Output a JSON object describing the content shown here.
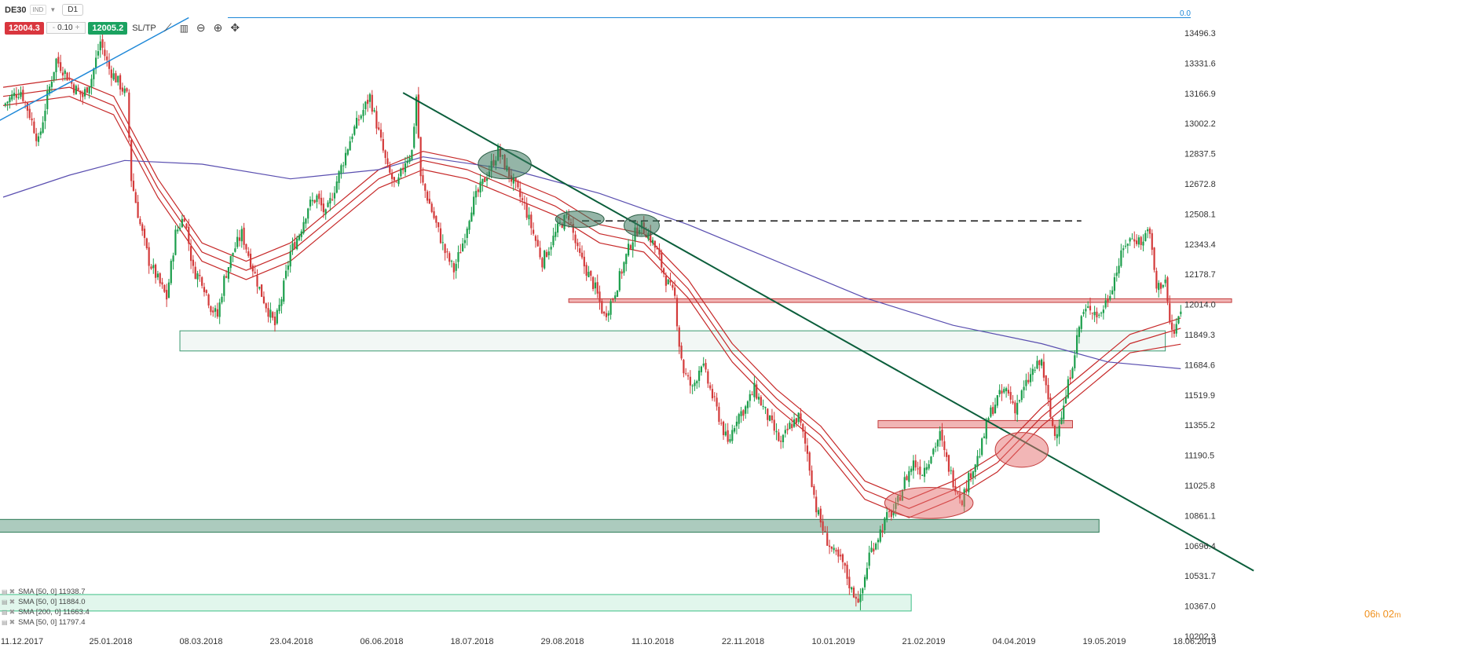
{
  "header": {
    "symbol": "DE30",
    "instrument_type": "IND",
    "timeframe": "D1",
    "sell_price": "12004.3",
    "lot_size": "0.10",
    "lot_minus": "-",
    "lot_plus": "+",
    "buy_price": "12005.2",
    "sltp_label": "SL/TP"
  },
  "icons": [
    "line-chart-icon",
    "candlestick-icon",
    "zoom-out-icon",
    "zoom-in-icon",
    "crosshair-icon"
  ],
  "top_right_value": "0.0",
  "timer": {
    "hours": "06",
    "h": "h",
    "minutes": "02",
    "m": "m"
  },
  "indicators": [
    {
      "label": "SMA [50, 0] 11938.7"
    },
    {
      "label": "SMA [50, 0] 11884.0"
    },
    {
      "label": "SMA [200, 0] 11663.4"
    },
    {
      "label": "SMA [50, 0] 11797.4"
    }
  ],
  "colors": {
    "bull": "#1b9e4b",
    "bear": "#d33a3a",
    "sma_red": "#c62828",
    "sma_purple": "#5a4fb0",
    "trendline": "#0b5e3b",
    "blue_trend": "#1e88d8",
    "accent_text": "#f0901c"
  },
  "chart_data": {
    "type": "candlestick",
    "title": "",
    "xlabel": "",
    "ylabel": "",
    "y_ticks": [
      13496.3,
      13331.6,
      13166.9,
      13002.2,
      12837.5,
      12672.8,
      12508.1,
      12343.4,
      12178.7,
      12014.0,
      11849.3,
      11684.6,
      11519.9,
      11355.2,
      11190.5,
      11025.8,
      10861.1,
      10696.4,
      10531.7,
      10367.0,
      10202.3
    ],
    "y_tick_labels": [
      "13496.3",
      "13331.6",
      "13166.9",
      "13002.2",
      "12837.5",
      "12672.8",
      "12508.1",
      "12343.4",
      "12178.7",
      "12014.0",
      "11849.3",
      "11684.6",
      "11519.9",
      "11355.2",
      "11190.5",
      "11025.8",
      "10861.1",
      "10696.4",
      "10531.7",
      "10367.0",
      "10202.3"
    ],
    "x_tick_labels": [
      "11.12.2017",
      "25.01.2018",
      "08.03.2018",
      "23.04.2018",
      "06.06.2018",
      "18.07.2018",
      "29.08.2018",
      "11.10.2018",
      "22.11.2018",
      "10.01.2019",
      "21.02.2019",
      "04.04.2019",
      "19.05.2019",
      "18.06.2019"
    ],
    "ylim": [
      10160,
      13560
    ],
    "grid": false,
    "close_path": [
      [
        0,
        13100
      ],
      [
        4,
        13150
      ],
      [
        8,
        13180
      ],
      [
        12,
        13050
      ],
      [
        16,
        12900
      ],
      [
        20,
        13150
      ],
      [
        24,
        13350
      ],
      [
        28,
        13280
      ],
      [
        32,
        13200
      ],
      [
        36,
        13150
      ],
      [
        40,
        13250
      ],
      [
        44,
        13450
      ],
      [
        48,
        13300
      ],
      [
        52,
        13230
      ],
      [
        56,
        13150
      ],
      [
        58,
        12700
      ],
      [
        62,
        12450
      ],
      [
        66,
        12250
      ],
      [
        70,
        12150
      ],
      [
        74,
        12050
      ],
      [
        78,
        12400
      ],
      [
        82,
        12500
      ],
      [
        86,
        12200
      ],
      [
        90,
        12150
      ],
      [
        94,
        12000
      ],
      [
        97,
        11950
      ],
      [
        100,
        12150
      ],
      [
        104,
        12300
      ],
      [
        108,
        12400
      ],
      [
        112,
        12250
      ],
      [
        116,
        12100
      ],
      [
        120,
        11980
      ],
      [
        123,
        11900
      ],
      [
        126,
        12050
      ],
      [
        130,
        12300
      ],
      [
        134,
        12400
      ],
      [
        138,
        12550
      ],
      [
        142,
        12600
      ],
      [
        146,
        12500
      ],
      [
        150,
        12650
      ],
      [
        154,
        12800
      ],
      [
        158,
        12950
      ],
      [
        162,
        13050
      ],
      [
        166,
        13150
      ],
      [
        170,
        12950
      ],
      [
        174,
        12750
      ],
      [
        178,
        12650
      ],
      [
        182,
        12800
      ],
      [
        185,
        12850
      ],
      [
        187,
        13150
      ],
      [
        189,
        12700
      ],
      [
        192,
        12600
      ],
      [
        196,
        12450
      ],
      [
        200,
        12300
      ],
      [
        204,
        12200
      ],
      [
        208,
        12350
      ],
      [
        212,
        12550
      ],
      [
        216,
        12650
      ],
      [
        220,
        12750
      ],
      [
        224,
        12850
      ],
      [
        228,
        12750
      ],
      [
        232,
        12650
      ],
      [
        236,
        12550
      ],
      [
        240,
        12400
      ],
      [
        244,
        12250
      ],
      [
        248,
        12350
      ],
      [
        252,
        12450
      ],
      [
        256,
        12500
      ],
      [
        260,
        12300
      ],
      [
        264,
        12200
      ],
      [
        268,
        12100
      ],
      [
        272,
        11950
      ],
      [
        276,
        12050
      ],
      [
        280,
        12200
      ],
      [
        284,
        12350
      ],
      [
        288,
        12450
      ],
      [
        292,
        12400
      ],
      [
        296,
        12300
      ],
      [
        300,
        12150
      ],
      [
        304,
        12050
      ],
      [
        306,
        11800
      ],
      [
        308,
        11650
      ],
      [
        312,
        11550
      ],
      [
        316,
        11700
      ],
      [
        320,
        11550
      ],
      [
        324,
        11400
      ],
      [
        328,
        11250
      ],
      [
        332,
        11400
      ],
      [
        336,
        11450
      ],
      [
        340,
        11550
      ],
      [
        344,
        11450
      ],
      [
        348,
        11350
      ],
      [
        352,
        11250
      ],
      [
        356,
        11350
      ],
      [
        360,
        11400
      ],
      [
        364,
        11200
      ],
      [
        368,
        10900
      ],
      [
        372,
        10750
      ],
      [
        376,
        10650
      ],
      [
        380,
        10600
      ],
      [
        384,
        10450
      ],
      [
        388,
        10400
      ],
      [
        392,
        10650
      ],
      [
        396,
        10750
      ],
      [
        400,
        10850
      ],
      [
        404,
        10900
      ],
      [
        408,
        11050
      ],
      [
        412,
        11150
      ],
      [
        416,
        11100
      ],
      [
        420,
        11200
      ],
      [
        424,
        11300
      ],
      [
        426,
        11200
      ],
      [
        430,
        11050
      ],
      [
        434,
        10950
      ],
      [
        438,
        11100
      ],
      [
        442,
        11200
      ],
      [
        446,
        11400
      ],
      [
        450,
        11500
      ],
      [
        454,
        11550
      ],
      [
        458,
        11450
      ],
      [
        462,
        11550
      ],
      [
        466,
        11650
      ],
      [
        470,
        11700
      ],
      [
        474,
        11400
      ],
      [
        476,
        11300
      ],
      [
        480,
        11450
      ],
      [
        484,
        11700
      ],
      [
        488,
        11950
      ],
      [
        492,
        12000
      ],
      [
        496,
        11950
      ],
      [
        500,
        12050
      ],
      [
        504,
        12200
      ],
      [
        508,
        12350
      ],
      [
        512,
        12380
      ],
      [
        516,
        12350
      ],
      [
        518,
        12450
      ],
      [
        520,
        12300
      ],
      [
        522,
        12100
      ],
      [
        526,
        12150
      ],
      [
        528,
        11900
      ],
      [
        530,
        11850
      ],
      [
        532,
        11950
      ],
      [
        533,
        11960
      ]
    ],
    "sma_50_a": [
      [
        0,
        13200
      ],
      [
        30,
        13250
      ],
      [
        50,
        13150
      ],
      [
        70,
        12700
      ],
      [
        90,
        12350
      ],
      [
        110,
        12250
      ],
      [
        130,
        12350
      ],
      [
        150,
        12550
      ],
      [
        170,
        12750
      ],
      [
        190,
        12850
      ],
      [
        210,
        12800
      ],
      [
        230,
        12700
      ],
      [
        250,
        12600
      ],
      [
        270,
        12450
      ],
      [
        290,
        12400
      ],
      [
        310,
        12150
      ],
      [
        330,
        11800
      ],
      [
        350,
        11550
      ],
      [
        370,
        11350
      ],
      [
        390,
        11050
      ],
      [
        410,
        10950
      ],
      [
        430,
        11050
      ],
      [
        450,
        11200
      ],
      [
        470,
        11450
      ],
      [
        490,
        11650
      ],
      [
        510,
        11850
      ],
      [
        533,
        11940
      ]
    ],
    "sma_50_b": [
      [
        0,
        13150
      ],
      [
        30,
        13200
      ],
      [
        50,
        13100
      ],
      [
        70,
        12650
      ],
      [
        90,
        12300
      ],
      [
        110,
        12200
      ],
      [
        130,
        12300
      ],
      [
        150,
        12500
      ],
      [
        170,
        12700
      ],
      [
        190,
        12800
      ],
      [
        210,
        12750
      ],
      [
        230,
        12650
      ],
      [
        250,
        12550
      ],
      [
        270,
        12400
      ],
      [
        290,
        12350
      ],
      [
        310,
        12100
      ],
      [
        330,
        11750
      ],
      [
        350,
        11500
      ],
      [
        370,
        11300
      ],
      [
        390,
        11000
      ],
      [
        410,
        10900
      ],
      [
        430,
        11000
      ],
      [
        450,
        11150
      ],
      [
        470,
        11400
      ],
      [
        490,
        11600
      ],
      [
        510,
        11800
      ],
      [
        533,
        11884
      ]
    ],
    "sma_50_c": [
      [
        0,
        13100
      ],
      [
        30,
        13150
      ],
      [
        50,
        13050
      ],
      [
        70,
        12600
      ],
      [
        90,
        12250
      ],
      [
        110,
        12150
      ],
      [
        130,
        12250
      ],
      [
        150,
        12450
      ],
      [
        170,
        12650
      ],
      [
        190,
        12750
      ],
      [
        210,
        12700
      ],
      [
        230,
        12600
      ],
      [
        250,
        12500
      ],
      [
        270,
        12350
      ],
      [
        290,
        12300
      ],
      [
        310,
        12050
      ],
      [
        330,
        11700
      ],
      [
        350,
        11450
      ],
      [
        370,
        11250
      ],
      [
        390,
        10950
      ],
      [
        410,
        10850
      ],
      [
        430,
        10950
      ],
      [
        450,
        11100
      ],
      [
        470,
        11350
      ],
      [
        490,
        11550
      ],
      [
        510,
        11750
      ],
      [
        533,
        11797
      ]
    ],
    "sma_200": [
      [
        0,
        12600
      ],
      [
        30,
        12720
      ],
      [
        55,
        12800
      ],
      [
        90,
        12780
      ],
      [
        130,
        12700
      ],
      [
        170,
        12750
      ],
      [
        190,
        12820
      ],
      [
        230,
        12750
      ],
      [
        270,
        12620
      ],
      [
        310,
        12450
      ],
      [
        350,
        12250
      ],
      [
        390,
        12050
      ],
      [
        430,
        11900
      ],
      [
        470,
        11800
      ],
      [
        500,
        11700
      ],
      [
        533,
        11663
      ]
    ],
    "zones": [
      {
        "kind": "gray",
        "from": 80,
        "to": 526,
        "low": 11760,
        "high": 11870
      },
      {
        "kind": "red",
        "from": 256,
        "to": 556,
        "low": 12025,
        "high": 12045
      },
      {
        "kind": "red",
        "from": 396,
        "to": 484,
        "low": 11340,
        "high": 11380
      },
      {
        "kind": "green",
        "from": 0,
        "to": 496,
        "low": 10770,
        "high": 10840
      },
      {
        "kind": "lightgreen",
        "from": 0,
        "to": 411,
        "low": 10340,
        "high": 10430
      }
    ],
    "ellipses": [
      {
        "kind": "green",
        "x": 227,
        "y": 12780,
        "rx": 12,
        "ry": 80
      },
      {
        "kind": "green",
        "x": 261,
        "y": 12480,
        "rx": 11,
        "ry": 45
      },
      {
        "kind": "green",
        "x": 289,
        "y": 12445,
        "rx": 8,
        "ry": 60
      },
      {
        "kind": "red",
        "x": 419,
        "y": 10930,
        "rx": 20,
        "ry": 85
      },
      {
        "kind": "red",
        "x": 461,
        "y": 11220,
        "rx": 12,
        "ry": 95
      }
    ],
    "trendline_green": [
      [
        181,
        13170
      ],
      [
        566,
        10560
      ]
    ],
    "trendline_blue": [
      [
        -6,
        12990
      ],
      [
        84,
        13580
      ]
    ],
    "dashed_resistance": {
      "from": 262,
      "to": 488,
      "y": 12470
    },
    "hline_top": {
      "y": 13580
    }
  }
}
